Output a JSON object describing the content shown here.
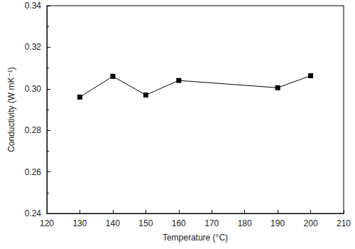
{
  "chart_data": {
    "type": "line",
    "x_label": "Temperature (°C)",
    "y_label": "Conductivity (W mK⁻¹)",
    "x": [
      130,
      140,
      150,
      160,
      190,
      200
    ],
    "values": [
      0.296,
      0.306,
      0.297,
      0.304,
      0.3005,
      0.3063
    ],
    "color": "#000000",
    "marker": "square",
    "line_style": "solid",
    "xlim": [
      120,
      210
    ],
    "xticks": [
      120,
      130,
      140,
      150,
      160,
      170,
      180,
      190,
      200,
      210
    ],
    "ylim": [
      0.24,
      0.34
    ],
    "yticks": [
      0.24,
      0.26,
      0.28,
      {
        "value": 0.3,
        "label": "0.30"
      },
      0.32,
      0.34
    ],
    "grid": false
  }
}
